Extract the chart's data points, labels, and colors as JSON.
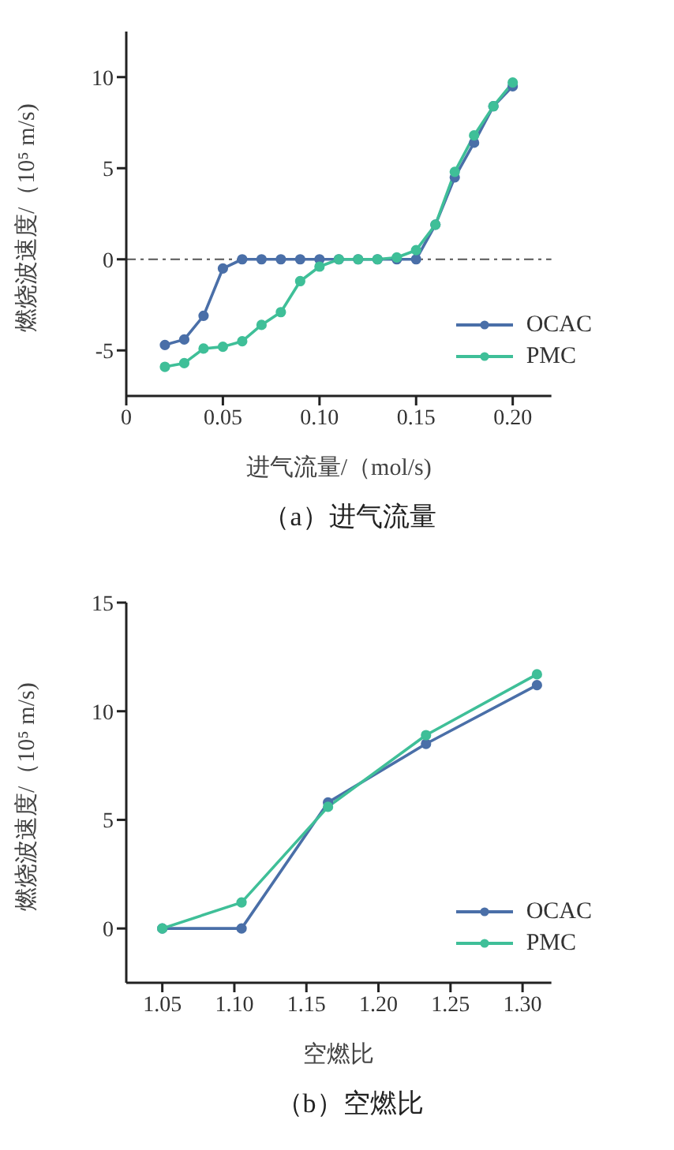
{
  "chart_data": [
    {
      "type": "line",
      "xlabel": "进气流量/（mol/s)",
      "ylabel": "燃烧波速度/（10⁵ m/s)",
      "annotations": [
        "（a）进气流量"
      ],
      "xlim": [
        0,
        0.22
      ],
      "xticks": [
        0,
        0.05,
        {
          "value": 0.1,
          "label": "0.10"
        },
        0.15,
        {
          "value": 0.2,
          "label": "0.20"
        }
      ],
      "ylim": [
        -7.5,
        12.5
      ],
      "yticks": [
        -5,
        0,
        5,
        10
      ],
      "grid": false,
      "legend": "bottom right",
      "marker": "circle",
      "line_style": "solid",
      "ref_lines": [
        {
          "axis": "y",
          "value": 0,
          "color": "#555555",
          "line_style": "dashed"
        }
      ],
      "x": [
        0.02,
        0.03,
        0.04,
        0.05,
        0.06,
        0.07,
        0.08,
        0.09,
        0.1,
        0.11,
        0.12,
        0.13,
        0.14,
        0.15,
        0.16,
        0.17,
        0.18,
        0.19,
        0.2
      ],
      "series": [
        {
          "name": "OCAC",
          "color": "#4a6fa8",
          "values": [
            -4.7,
            -4.4,
            -3.1,
            -0.5,
            0,
            0,
            0,
            0,
            0,
            0,
            0,
            0,
            0,
            0,
            1.9,
            4.5,
            6.4,
            8.4,
            9.5
          ]
        },
        {
          "name": "PMC",
          "color": "#3fbf98",
          "values": [
            -5.9,
            -5.7,
            -4.9,
            -4.8,
            -4.5,
            -3.6,
            -2.9,
            -1.2,
            -0.4,
            0,
            0,
            0,
            0.1,
            0.5,
            1.9,
            4.8,
            6.8,
            8.4,
            9.7
          ]
        }
      ]
    },
    {
      "type": "line",
      "xlabel": "空燃比",
      "ylabel": "燃烧波速度/（10⁵ m/s)",
      "annotations": [
        "（b）空燃比"
      ],
      "xlim": [
        1.025,
        1.32
      ],
      "xticks": [
        1.05,
        {
          "value": 1.1,
          "label": "1.10"
        },
        1.15,
        {
          "value": 1.2,
          "label": "1.20"
        },
        1.25,
        {
          "value": 1.3,
          "label": "1.30"
        }
      ],
      "ylim": [
        -2.5,
        15
      ],
      "yticks": [
        0,
        5,
        10,
        15
      ],
      "grid": false,
      "legend": "bottom right",
      "marker": "circle",
      "line_style": "solid",
      "x": [
        1.05,
        1.105,
        1.165,
        1.233,
        1.31
      ],
      "series": [
        {
          "name": "OCAC",
          "color": "#4a6fa8",
          "values": [
            0,
            0,
            5.8,
            8.5,
            11.2
          ]
        },
        {
          "name": "PMC",
          "color": "#3fbf98",
          "values": [
            0,
            1.2,
            5.6,
            8.9,
            11.7
          ]
        }
      ]
    }
  ]
}
